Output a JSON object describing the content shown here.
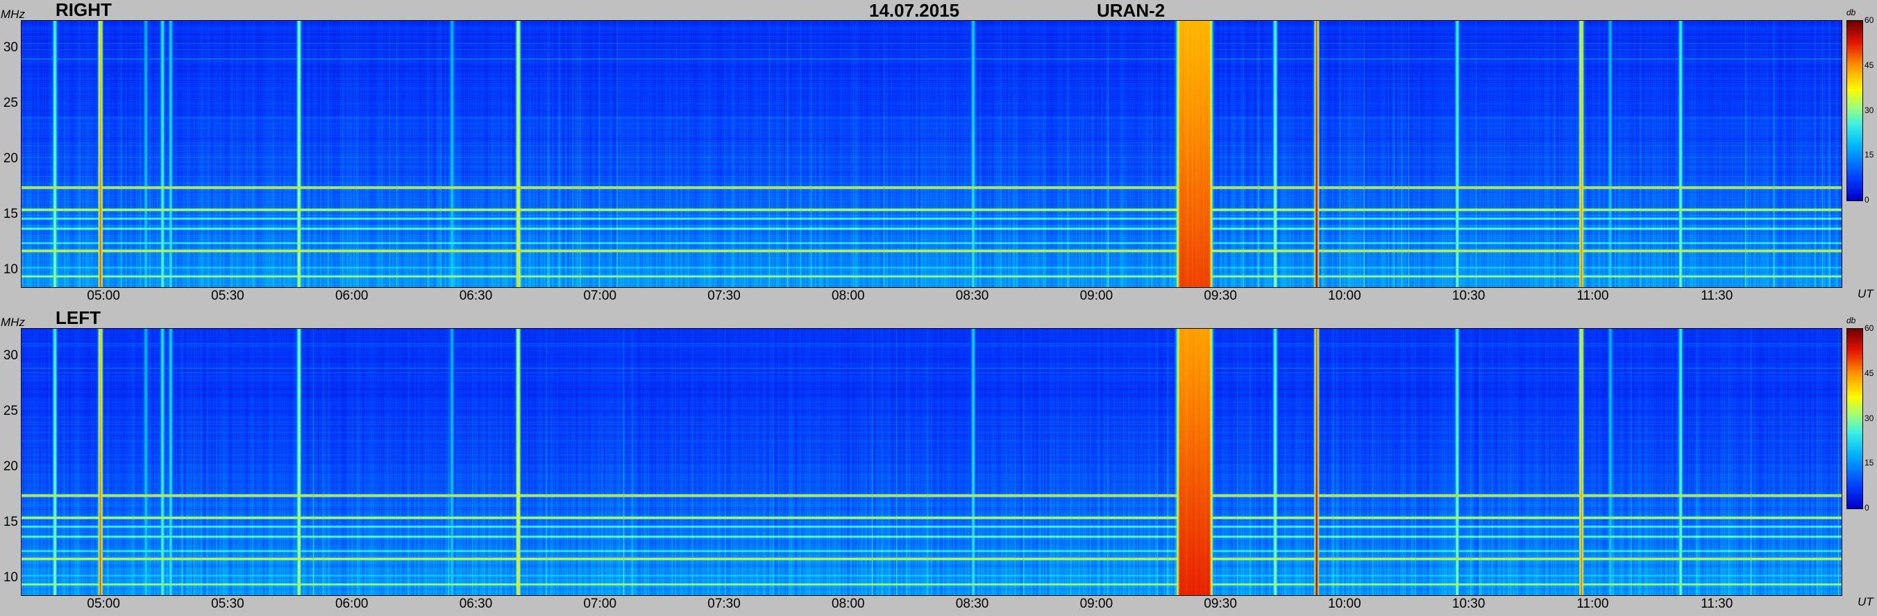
{
  "header": {
    "date": "14.07.2015",
    "instrument": "URAN-2"
  },
  "axes": {
    "y_unit": "MHz",
    "x_unit": "UT",
    "colorbar_unit": "db"
  },
  "panels": [
    {
      "title": "RIGHT"
    },
    {
      "title": "LEFT"
    }
  ],
  "chart_data": [
    {
      "type": "heatmap",
      "title": "RIGHT",
      "xlabel": "UT",
      "ylabel": "MHz",
      "x_range": [
        "04:40",
        "12:00"
      ],
      "y_range": [
        8.5,
        32.5
      ],
      "x_ticks": [
        "05:00",
        "05:30",
        "06:00",
        "06:30",
        "07:00",
        "07:30",
        "08:00",
        "08:30",
        "09:00",
        "09:30",
        "10:00",
        "10:30",
        "11:00",
        "11:30"
      ],
      "y_ticks": [
        "10",
        "15",
        "20",
        "25",
        "30"
      ],
      "colorbar": {
        "label": "db",
        "range": [
          0,
          60
        ],
        "ticks": [
          "0",
          "15",
          "30",
          "45",
          "60"
        ]
      },
      "broadband_bursts_UT": [
        {
          "time": "04:48",
          "level_db": 32
        },
        {
          "time": "04:59",
          "level_db": 50
        },
        {
          "time": "05:10",
          "level_db": 22
        },
        {
          "time": "05:14",
          "level_db": 28
        },
        {
          "time": "05:16",
          "level_db": 25
        },
        {
          "time": "05:47",
          "level_db": 36
        },
        {
          "time": "06:24",
          "level_db": 22
        },
        {
          "time": "06:40",
          "level_db": 42
        },
        {
          "time": "08:30",
          "level_db": 25
        },
        {
          "time": "09:20 - 09:27",
          "level_db": 50
        },
        {
          "time": "09:43",
          "level_db": 32
        },
        {
          "time": "09:53",
          "level_db": 58
        },
        {
          "time": "10:27",
          "level_db": 30
        },
        {
          "time": "10:57",
          "level_db": 48
        },
        {
          "time": "11:04",
          "level_db": 22
        },
        {
          "time": "11:21",
          "level_db": 30
        }
      ],
      "interference_bands_MHz": [
        {
          "freq": 17.5,
          "level_db": 42
        },
        {
          "freq": 15.5,
          "level_db": 38
        },
        {
          "freq": 14.7,
          "level_db": 28
        },
        {
          "freq": 13.8,
          "level_db": 30
        },
        {
          "freq": 12.5,
          "level_db": 26
        },
        {
          "freq": 11.8,
          "level_db": 40
        },
        {
          "freq": 10.3,
          "level_db": 22
        },
        {
          "freq": 9.5,
          "level_db": 34
        }
      ]
    },
    {
      "type": "heatmap",
      "title": "LEFT",
      "xlabel": "UT",
      "ylabel": "MHz",
      "x_range": [
        "04:40",
        "12:00"
      ],
      "y_range": [
        8.5,
        32.5
      ],
      "x_ticks": [
        "05:00",
        "05:30",
        "06:00",
        "06:30",
        "07:00",
        "07:30",
        "08:00",
        "08:30",
        "09:00",
        "09:30",
        "10:00",
        "10:30",
        "11:00",
        "11:30"
      ],
      "y_ticks": [
        "10",
        "15",
        "20",
        "25",
        "30"
      ],
      "colorbar": {
        "label": "db",
        "range": [
          0,
          60
        ],
        "ticks": [
          "0",
          "15",
          "30",
          "45",
          "60"
        ]
      },
      "broadband_bursts_UT": [
        {
          "time": "04:48",
          "level_db": 32
        },
        {
          "time": "04:59",
          "level_db": 50
        },
        {
          "time": "05:10",
          "level_db": 22
        },
        {
          "time": "05:14",
          "level_db": 28
        },
        {
          "time": "05:16",
          "level_db": 25
        },
        {
          "time": "05:47",
          "level_db": 36
        },
        {
          "time": "06:24",
          "level_db": 22
        },
        {
          "time": "06:40",
          "level_db": 42
        },
        {
          "time": "08:30",
          "level_db": 25
        },
        {
          "time": "09:20 - 09:27",
          "level_db": 52
        },
        {
          "time": "09:43",
          "level_db": 32
        },
        {
          "time": "09:53",
          "level_db": 58
        },
        {
          "time": "10:27",
          "level_db": 30
        },
        {
          "time": "10:57",
          "level_db": 48
        },
        {
          "time": "11:04",
          "level_db": 22
        },
        {
          "time": "11:21",
          "level_db": 30
        }
      ],
      "interference_bands_MHz": [
        {
          "freq": 17.5,
          "level_db": 42
        },
        {
          "freq": 15.5,
          "level_db": 38
        },
        {
          "freq": 14.7,
          "level_db": 28
        },
        {
          "freq": 13.8,
          "level_db": 30
        },
        {
          "freq": 12.5,
          "level_db": 26
        },
        {
          "freq": 11.8,
          "level_db": 40
        },
        {
          "freq": 10.3,
          "level_db": 22
        },
        {
          "freq": 9.5,
          "level_db": 34
        }
      ]
    }
  ]
}
